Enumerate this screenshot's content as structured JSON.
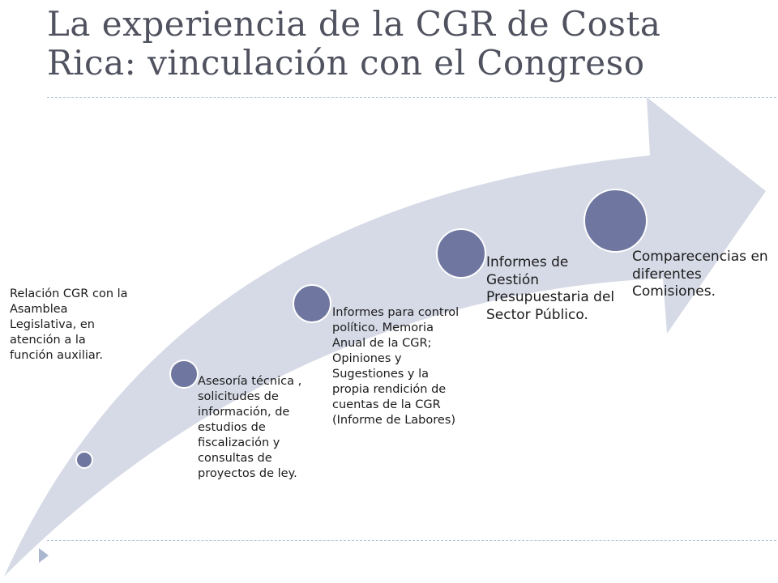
{
  "title": "La experiencia de la CGR de Costa Rica: vinculación con el Congreso",
  "colors": {
    "arrow_fill": "#d6dae6",
    "node_fill": "#6f77a0",
    "title_color": "#50525f",
    "rule_color": "#b7c6d9"
  },
  "steps": [
    {
      "text": "Relación CGR con la Asamblea Legislativa, en atención a la función auxiliar."
    },
    {
      "text": "Asesoría técnica , solicitudes de información, de estudios de fiscalización y consultas de proyectos de ley."
    },
    {
      "text": "Informes para control político. Memoria Anual de la CGR; Opiniones y Sugestiones y la propia rendición de cuentas de la CGR (Informe de Labores)"
    },
    {
      "text": "Informes de Gestión Presupuestaria del Sector Público."
    },
    {
      "text": "Comparecencias en diferentes Comisiones."
    }
  ],
  "icons": {
    "slide_bullet": "triangle-bullet-icon",
    "arrow": "curved-arrow"
  }
}
